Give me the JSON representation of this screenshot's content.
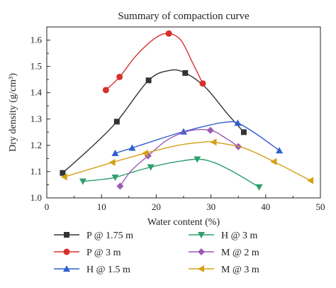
{
  "chart_data": {
    "type": "line",
    "title": "Summary of compaction curve",
    "xlabel": "Water content (%)",
    "ylabel": "Dry density (g/cm³)",
    "xlim": [
      0,
      50
    ],
    "ylim": [
      1.0,
      1.65
    ],
    "xticks": [
      0,
      10,
      20,
      30,
      40,
      50
    ],
    "yticks": [
      1.0,
      1.1,
      1.2,
      1.3,
      1.4,
      1.5,
      1.6
    ],
    "grid": false,
    "legend_placement": "bottom",
    "series": [
      {
        "name": "P @ 1.75 m",
        "marker": "square",
        "color": "#333333",
        "points": [
          [
            2.9,
            1.095
          ],
          [
            12.8,
            1.29
          ],
          [
            18.6,
            1.447
          ],
          [
            25.3,
            1.475
          ],
          [
            36.0,
            1.25
          ]
        ],
        "curve": [
          [
            2.9,
            1.095
          ],
          [
            8,
            1.19
          ],
          [
            12.8,
            1.29
          ],
          [
            18.6,
            1.447
          ],
          [
            22.5,
            1.485
          ],
          [
            25.3,
            1.475
          ],
          [
            29,
            1.42
          ],
          [
            33,
            1.32
          ],
          [
            36.0,
            1.25
          ]
        ]
      },
      {
        "name": "P @ 3 m",
        "marker": "circle",
        "color": "#d8302a",
        "points": [
          [
            10.8,
            1.41
          ],
          [
            13.3,
            1.46
          ],
          [
            22.3,
            1.625
          ],
          [
            28.5,
            1.435
          ]
        ],
        "curve": [
          [
            10.8,
            1.41
          ],
          [
            13.3,
            1.46
          ],
          [
            16.5,
            1.545
          ],
          [
            20,
            1.61
          ],
          [
            22.3,
            1.625
          ],
          [
            24.5,
            1.6
          ],
          [
            26.5,
            1.52
          ],
          [
            28.5,
            1.435
          ]
        ]
      },
      {
        "name": "H @ 1.5 m",
        "marker": "triangle-up",
        "color": "#2f5fd0",
        "points": [
          [
            12.5,
            1.17
          ],
          [
            15.6,
            1.19
          ],
          [
            25.0,
            1.252
          ],
          [
            34.9,
            1.285
          ],
          [
            42.5,
            1.18
          ]
        ],
        "curve": [
          [
            12.5,
            1.17
          ],
          [
            15.6,
            1.19
          ],
          [
            20,
            1.22
          ],
          [
            25.0,
            1.252
          ],
          [
            30,
            1.278
          ],
          [
            32.8,
            1.288
          ],
          [
            34.9,
            1.285
          ],
          [
            38.5,
            1.24
          ],
          [
            42.5,
            1.18
          ]
        ]
      },
      {
        "name": "H @ 3 m",
        "marker": "triangle-down",
        "color": "#2e9e6e",
        "points": [
          [
            6.6,
            1.063
          ],
          [
            12.5,
            1.078
          ],
          [
            19.0,
            1.117
          ],
          [
            27.5,
            1.147
          ],
          [
            38.8,
            1.041
          ]
        ],
        "curve": [
          [
            6.6,
            1.063
          ],
          [
            10,
            1.07
          ],
          [
            12.5,
            1.078
          ],
          [
            16,
            1.1
          ],
          [
            19.0,
            1.117
          ],
          [
            23,
            1.135
          ],
          [
            27.5,
            1.147
          ],
          [
            30.5,
            1.135
          ],
          [
            34,
            1.1
          ],
          [
            38.8,
            1.041
          ]
        ]
      },
      {
        "name": "M @ 2 m",
        "marker": "diamond",
        "color": "#9b59b6",
        "points": [
          [
            13.4,
            1.045
          ],
          [
            18.5,
            1.16
          ],
          [
            29.9,
            1.257
          ],
          [
            35.0,
            1.195
          ]
        ],
        "curve": [
          [
            13.4,
            1.045
          ],
          [
            15.5,
            1.105
          ],
          [
            18.5,
            1.16
          ],
          [
            22,
            1.22
          ],
          [
            26,
            1.255
          ],
          [
            29.9,
            1.257
          ],
          [
            32.5,
            1.23
          ],
          [
            35.0,
            1.195
          ]
        ]
      },
      {
        "name": "M @ 3 m",
        "marker": "triangle-left",
        "color": "#d4a017",
        "points": [
          [
            3.2,
            1.08
          ],
          [
            12.0,
            1.135
          ],
          [
            18.0,
            1.17
          ],
          [
            30.5,
            1.212
          ],
          [
            41.5,
            1.138
          ],
          [
            48.2,
            1.066
          ]
        ],
        "curve": [
          [
            3.2,
            1.08
          ],
          [
            8,
            1.11
          ],
          [
            12.0,
            1.135
          ],
          [
            18.0,
            1.17
          ],
          [
            24,
            1.2
          ],
          [
            28.5,
            1.212
          ],
          [
            30.5,
            1.212
          ],
          [
            36,
            1.19
          ],
          [
            41.5,
            1.138
          ],
          [
            48.2,
            1.066
          ]
        ]
      }
    ]
  }
}
